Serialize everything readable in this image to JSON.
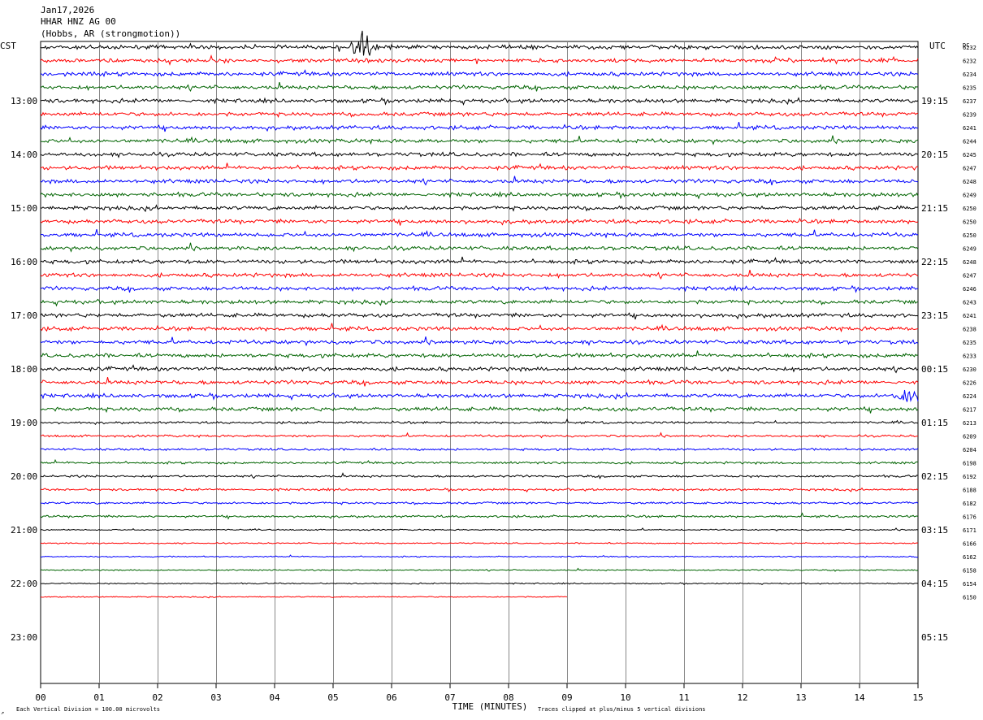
{
  "header": {
    "date": "Jan17,2026",
    "station": "HHAR HNZ AG 00",
    "location": "(Hobbs, AR (strongmotion))"
  },
  "chart_data": {
    "type": "line",
    "title": "",
    "left_label": "CST",
    "right_label": "UTC",
    "dc_label": "DC",
    "xlabel": "TIME (MINUTES)",
    "x_ticks": [
      "00",
      "01",
      "02",
      "03",
      "04",
      "05",
      "06",
      "07",
      "08",
      "09",
      "10",
      "11",
      "12",
      "13",
      "14",
      "15"
    ],
    "xlim": [
      0,
      15
    ],
    "left_hour_labels": [
      "13:00",
      "14:00",
      "15:00",
      "16:00",
      "17:00",
      "18:00",
      "19:00",
      "20:00",
      "21:00",
      "22:00",
      "23:00"
    ],
    "right_hour_labels": [
      "19:15",
      "20:15",
      "21:15",
      "22:15",
      "23:15",
      "00:15",
      "01:15",
      "02:15",
      "03:15",
      "04:15",
      "05:15"
    ],
    "trace_colors": [
      "#000000",
      "#ff0000",
      "#0000ff",
      "#006400"
    ],
    "dc_offsets": [
      "6232",
      "6232",
      "6234",
      "6235",
      "6237",
      "6239",
      "6241",
      "6244",
      "6245",
      "6247",
      "6248",
      "6249",
      "6250",
      "6250",
      "6250",
      "6249",
      "6248",
      "6247",
      "6246",
      "6243",
      "6241",
      "6238",
      "6235",
      "6233",
      "6230",
      "6226",
      "6224",
      "6217",
      "6213",
      "6209",
      "6204",
      "6198",
      "6192",
      "6188",
      "6182",
      "6176",
      "6171",
      "6166",
      "6162",
      "6158",
      "6154",
      "6150"
    ],
    "last_trace_end_minute": 9.0,
    "footer_left": "Each Vertical Division =  100.00 microvolts",
    "footer_right": "Traces clipped at plus/minus 5 vertical divisions",
    "corner_mark": "↗"
  }
}
